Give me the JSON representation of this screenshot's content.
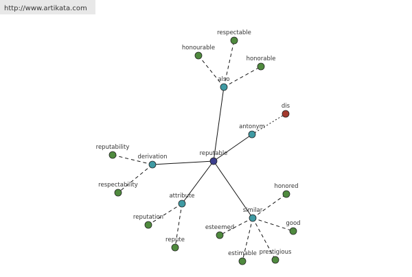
{
  "header": {
    "url": "http://www.artikata.com"
  },
  "nodes": [
    {
      "label": "reputable"
    },
    {
      "label": "also"
    },
    {
      "label": "respectable"
    },
    {
      "label": "honourable"
    },
    {
      "label": "honorable"
    },
    {
      "label": "antonym"
    },
    {
      "label": "dis"
    },
    {
      "label": "derivation"
    },
    {
      "label": "reputability"
    },
    {
      "label": "respectability"
    },
    {
      "label": "attribute"
    },
    {
      "label": "reputation"
    },
    {
      "label": "repute"
    },
    {
      "label": "similar"
    },
    {
      "label": "honored"
    },
    {
      "label": "good"
    },
    {
      "label": "esteemed"
    },
    {
      "label": "estimable"
    },
    {
      "label": "prestigious"
    }
  ]
}
